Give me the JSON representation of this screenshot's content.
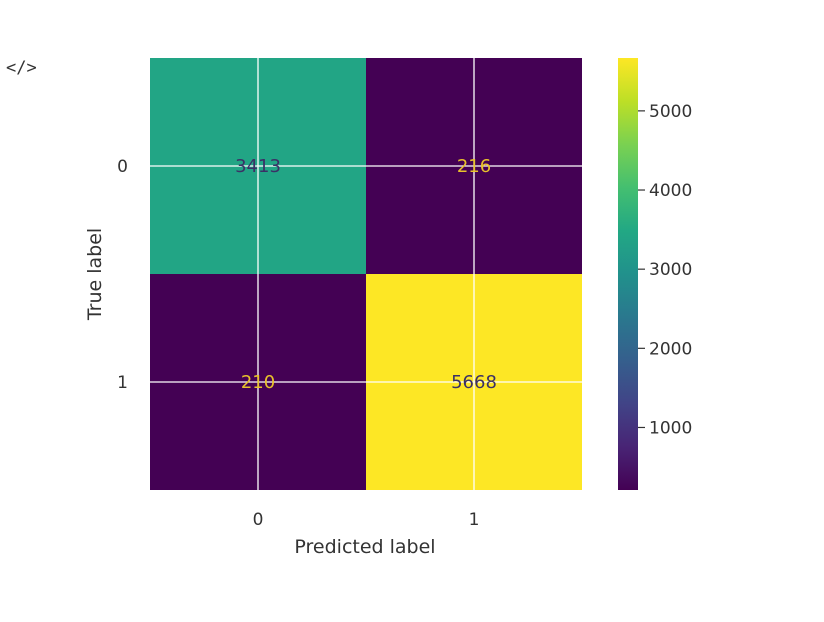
{
  "toolbar": {
    "icon": "code-icon",
    "glyph": "</>"
  },
  "chart_data": {
    "type": "heatmap",
    "title": "",
    "xlabel": "Predicted label",
    "ylabel": "True label",
    "x_categories": [
      "0",
      "1"
    ],
    "y_categories": [
      "0",
      "1"
    ],
    "values": [
      [
        3413,
        216
      ],
      [
        210,
        5668
      ]
    ],
    "colorbar": {
      "colormap": "viridis",
      "vmin": 210,
      "vmax": 5668,
      "ticks": [
        1000,
        2000,
        3000,
        4000,
        5000
      ]
    },
    "grid": true,
    "text_colors": {
      "on_dark": "#e8c22b",
      "on_light": "#3b3066"
    }
  }
}
